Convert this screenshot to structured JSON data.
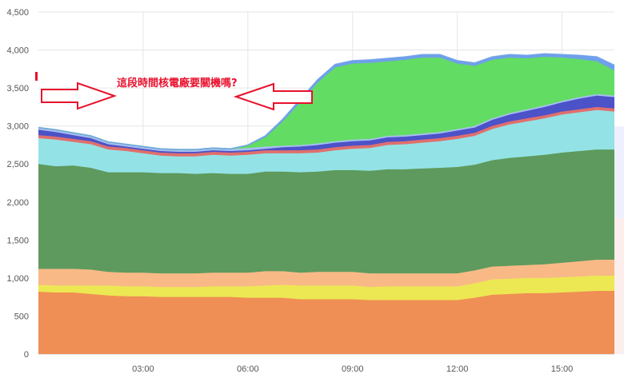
{
  "chart_data": {
    "type": "area",
    "stacked": true,
    "grid": true,
    "x": [
      0,
      0.5,
      1,
      1.5,
      2,
      2.5,
      3,
      3.5,
      4,
      4.5,
      5,
      5.5,
      6,
      6.5,
      7,
      7.5,
      8,
      8.5,
      9,
      9.5,
      10,
      10.5,
      11,
      11.5,
      12,
      12.5,
      13,
      13.5,
      14,
      14.5,
      15,
      15.5,
      16,
      16.5
    ],
    "xticks": [
      {
        "v": 3,
        "label": "03:00"
      },
      {
        "v": 6,
        "label": "06:00"
      },
      {
        "v": 9,
        "label": "09:00"
      },
      {
        "v": 12,
        "label": "12:00"
      },
      {
        "v": 15,
        "label": "15:00"
      }
    ],
    "yticks": [
      {
        "v": 0,
        "label": "0"
      },
      {
        "v": 500,
        "label": "500"
      },
      {
        "v": 1000,
        "label": "1,000"
      },
      {
        "v": 1500,
        "label": "1,500"
      },
      {
        "v": 2000,
        "label": "2,000"
      },
      {
        "v": 2500,
        "label": "2,500"
      },
      {
        "v": 3000,
        "label": "3,000"
      },
      {
        "v": 3500,
        "label": "3,500"
      },
      {
        "v": 4000,
        "label": "4,000"
      },
      {
        "v": 4500,
        "label": "4,500"
      }
    ],
    "xlim": [
      0,
      16.5
    ],
    "ylim": [
      0,
      4500
    ],
    "series": [
      {
        "color": "#ef8f55",
        "values": [
          820,
          810,
          810,
          790,
          770,
          760,
          760,
          750,
          750,
          750,
          750,
          750,
          740,
          740,
          740,
          720,
          720,
          720,
          720,
          710,
          710,
          710,
          710,
          710,
          710,
          740,
          780,
          790,
          800,
          800,
          810,
          820,
          830,
          830
        ]
      },
      {
        "color": "#ece853",
        "values": [
          90,
          90,
          90,
          110,
          130,
          130,
          130,
          130,
          130,
          130,
          140,
          140,
          150,
          160,
          170,
          180,
          180,
          180,
          180,
          170,
          180,
          180,
          180,
          180,
          180,
          190,
          200,
          200,
          200,
          200,
          200,
          200,
          200,
          200
        ]
      },
      {
        "color": "#f9b987",
        "values": [
          210,
          220,
          220,
          210,
          180,
          180,
          180,
          180,
          180,
          180,
          180,
          180,
          180,
          190,
          180,
          170,
          180,
          180,
          180,
          180,
          170,
          170,
          170,
          170,
          170,
          170,
          170,
          170,
          170,
          180,
          190,
          200,
          210,
          210
        ]
      },
      {
        "color": "#5e9a5d",
        "values": [
          1380,
          1350,
          1360,
          1340,
          1310,
          1320,
          1320,
          1320,
          1320,
          1310,
          1310,
          1300,
          1300,
          1310,
          1310,
          1320,
          1320,
          1340,
          1340,
          1350,
          1370,
          1370,
          1380,
          1390,
          1400,
          1390,
          1400,
          1420,
          1430,
          1440,
          1450,
          1450,
          1450,
          1450
        ]
      },
      {
        "color": "#93e3e6",
        "values": [
          340,
          350,
          310,
          310,
          300,
          280,
          250,
          230,
          220,
          230,
          240,
          240,
          250,
          240,
          240,
          250,
          250,
          260,
          280,
          300,
          320,
          330,
          340,
          350,
          370,
          380,
          410,
          440,
          460,
          480,
          500,
          510,
          520,
          500
        ]
      },
      {
        "color": "#e06f6d",
        "values": [
          40,
          40,
          40,
          40,
          40,
          40,
          40,
          40,
          40,
          40,
          40,
          40,
          40,
          40,
          40,
          40,
          40,
          40,
          40,
          40,
          40,
          40,
          40,
          40,
          40,
          40,
          40,
          40,
          40,
          40,
          40,
          40,
          40,
          40
        ]
      },
      {
        "color": "#4c52c8",
        "values": [
          70,
          60,
          50,
          40,
          30,
          20,
          20,
          20,
          20,
          20,
          20,
          20,
          20,
          20,
          40,
          50,
          60,
          60,
          60,
          60,
          60,
          60,
          60,
          60,
          70,
          70,
          80,
          90,
          100,
          110,
          120,
          140,
          150,
          150
        ]
      },
      {
        "color": "#a6bff0",
        "values": [
          30,
          30,
          30,
          30,
          30,
          30,
          30,
          30,
          30,
          30,
          30,
          30,
          30,
          30,
          20,
          20,
          20,
          20,
          20,
          20,
          20,
          20,
          20,
          20,
          20,
          20,
          20,
          20,
          20,
          20,
          20,
          20,
          20,
          20
        ]
      },
      {
        "color": "#62dc63",
        "values": [
          0,
          0,
          0,
          0,
          0,
          0,
          0,
          0,
          0,
          0,
          0,
          0,
          30,
          120,
          320,
          560,
          800,
          970,
          1000,
          1000,
          980,
          990,
          1000,
          980,
          860,
          790,
          770,
          730,
          670,
          640,
          570,
          500,
          430,
          330
        ]
      },
      {
        "color": "#6fa0ea",
        "values": [
          0,
          0,
          0,
          0,
          0,
          0,
          0,
          0,
          0,
          0,
          0,
          0,
          10,
          20,
          30,
          40,
          40,
          40,
          40,
          40,
          40,
          40,
          40,
          40,
          40,
          40,
          40,
          40,
          40,
          40,
          40,
          50,
          60,
          70
        ]
      }
    ],
    "annotations": [
      {
        "text": "這段時間核電廠要關機嗎?",
        "color": "#e8112d"
      }
    ]
  }
}
